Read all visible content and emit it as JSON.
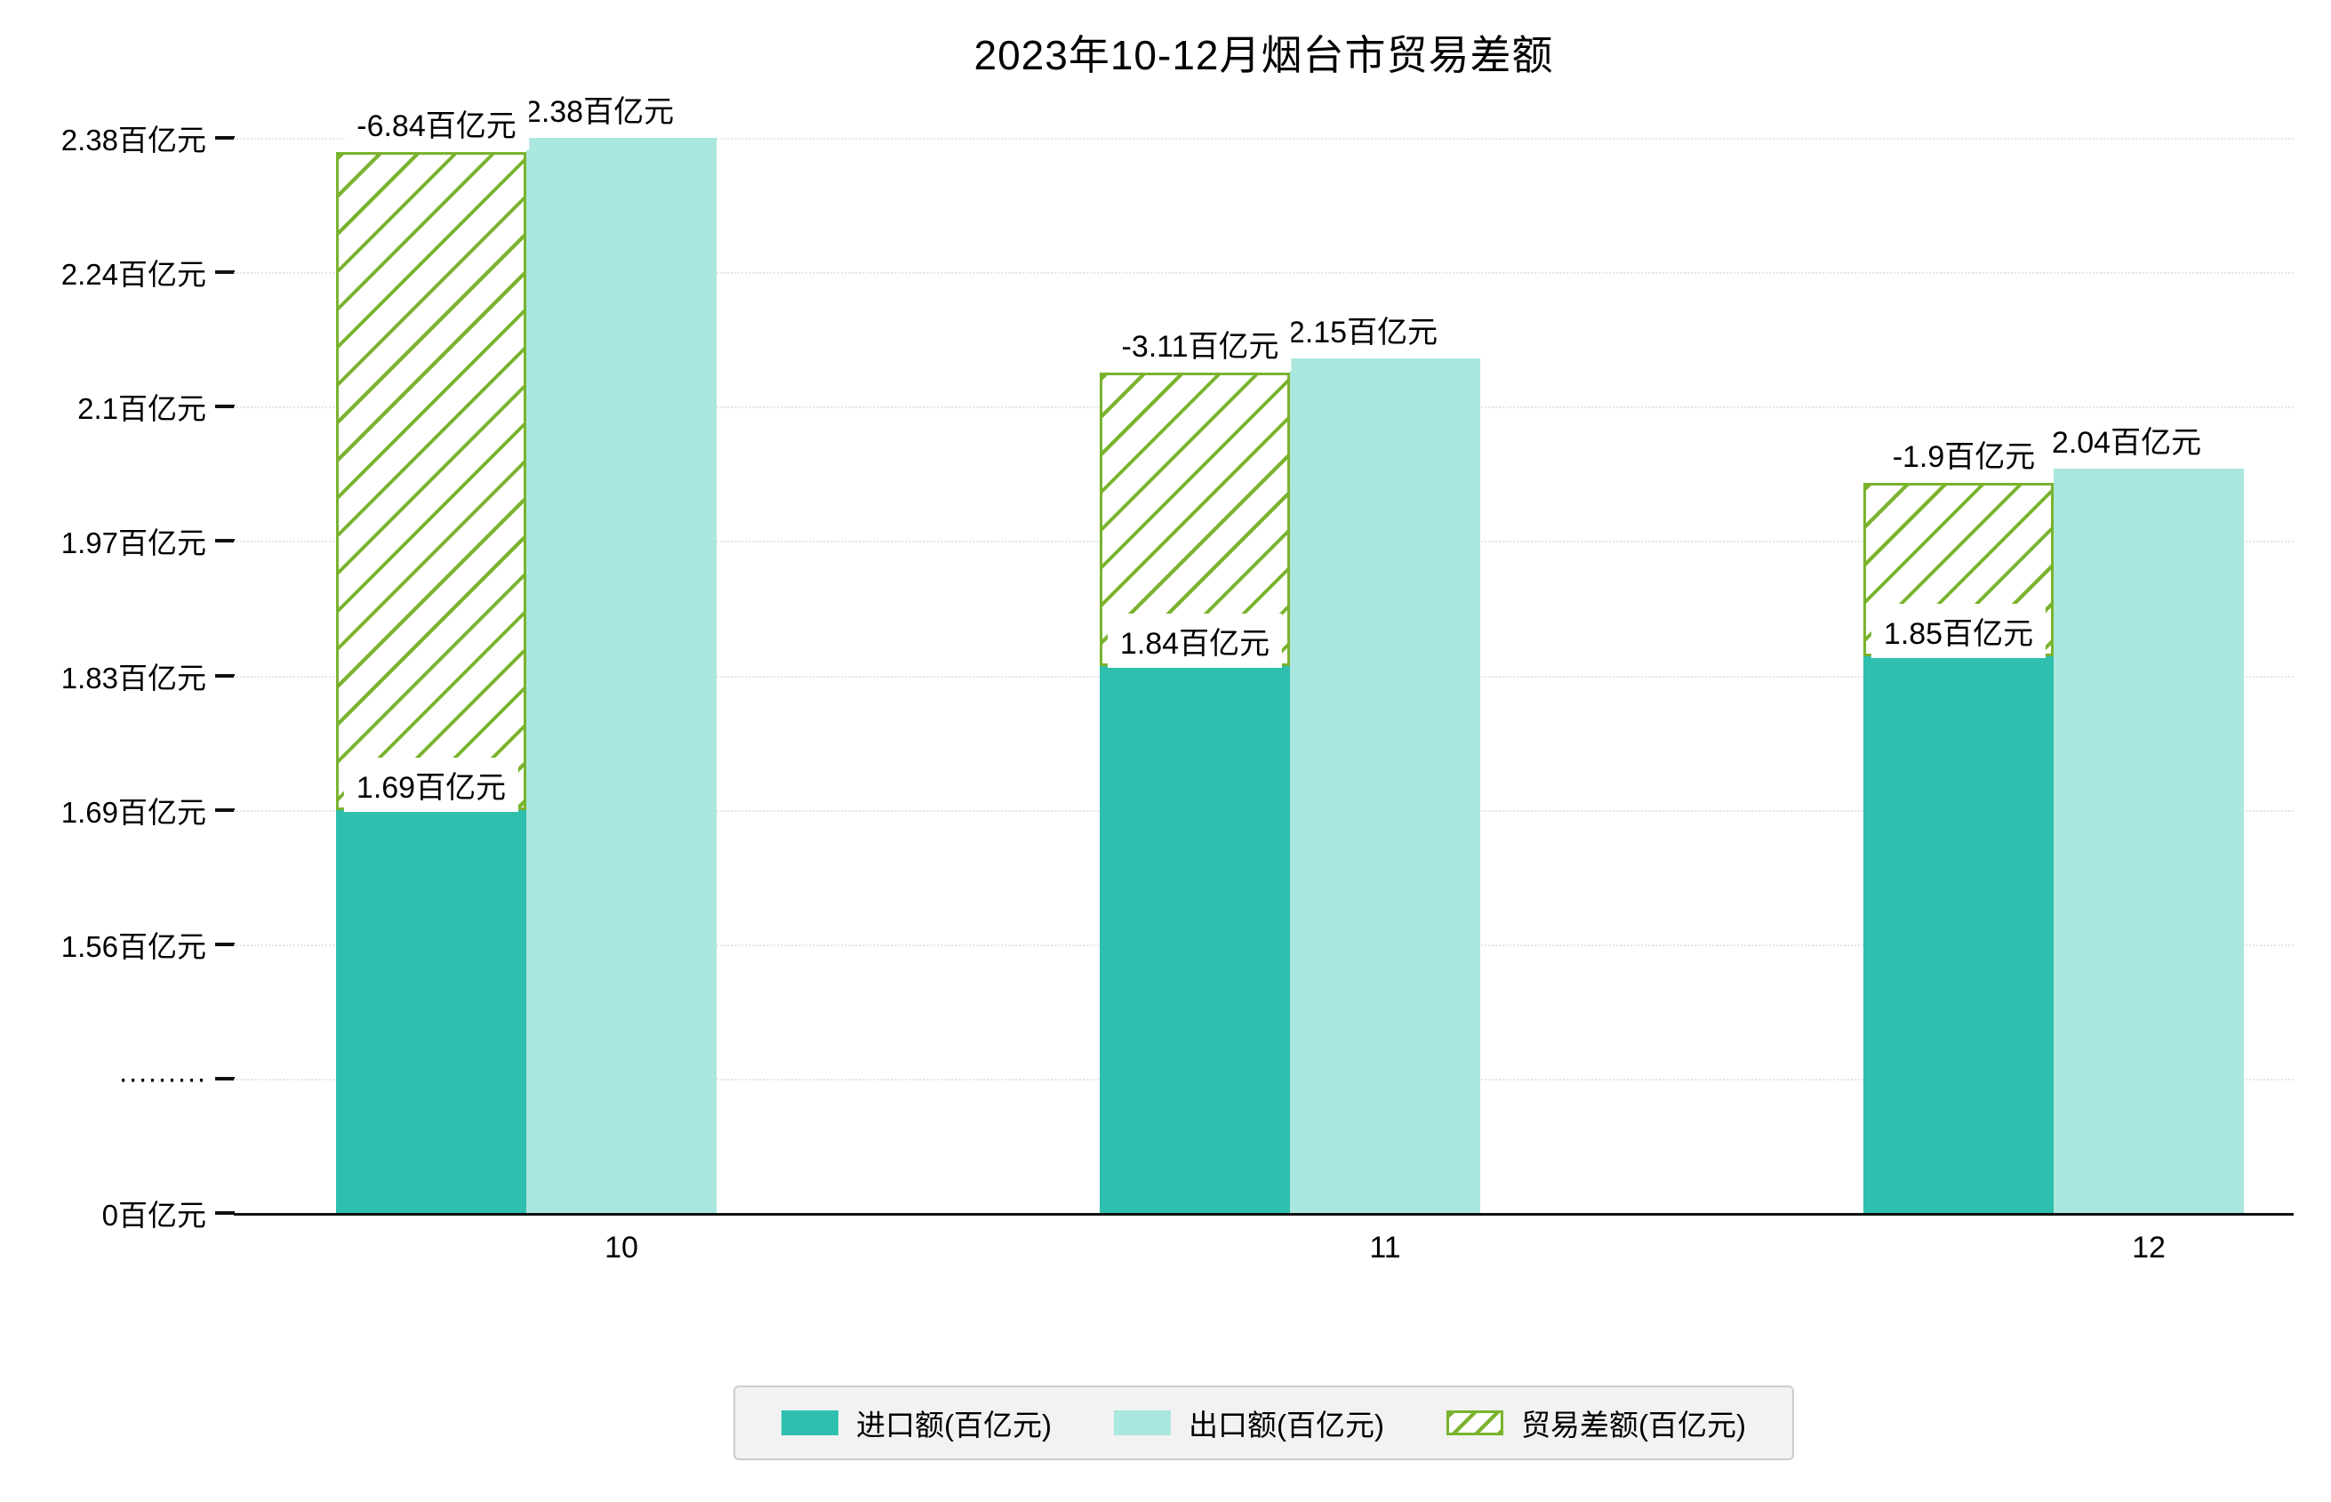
{
  "chart_data": {
    "type": "bar",
    "title": "2023年10-12月烟台市贸易差额",
    "categories": [
      "10",
      "11",
      "12"
    ],
    "unit": "百亿元",
    "series": [
      {
        "name": "进口额(百亿元)",
        "color": "#2fbfae",
        "values": [
          1.69,
          1.84,
          1.85
        ],
        "data_labels": [
          "1.69百亿元",
          "1.84百亿元",
          "1.85百亿元"
        ]
      },
      {
        "name": "出口额(百亿元)",
        "color": "#aae7de",
        "values": [
          2.38,
          2.15,
          2.04
        ],
        "data_labels": [
          "2.38百亿元",
          "2.15百亿元",
          "2.04百亿元"
        ]
      },
      {
        "name": "贸易差额(百亿元)",
        "style": "hatched",
        "color": "#7ab32e",
        "values": [
          -6.84,
          -3.11,
          -1.9
        ],
        "data_labels": [
          "-6.84百亿元",
          "-3.11百亿元",
          "-1.9百亿元"
        ]
      }
    ],
    "y_axis": {
      "axis_break": true,
      "ticks": [
        {
          "label": "2.38百亿元",
          "value": 2.38
        },
        {
          "label": "2.24百亿元",
          "value": 2.24
        },
        {
          "label": "2.1百亿元",
          "value": 2.1
        },
        {
          "label": "1.97百亿元",
          "value": 1.97
        },
        {
          "label": "1.83百亿元",
          "value": 1.83
        },
        {
          "label": "1.69百亿元",
          "value": 1.69
        },
        {
          "label": "1.56百亿元",
          "value": 1.56
        },
        {
          "label": "·········",
          "value": null
        },
        {
          "label": "0百亿元",
          "value": 0
        }
      ]
    },
    "legend": {
      "position": "bottom",
      "items": [
        "进口额(百亿元)",
        "出口额(百亿元)",
        "贸易差额(百亿元)"
      ]
    },
    "grid": true
  },
  "colors": {
    "import": "#2fbfae",
    "export": "#aae7de",
    "balance": "#7ab32e",
    "axis": "#111111",
    "gridline": "#e4e4e4",
    "legend_bg": "#f2f2f2",
    "legend_border": "#cccccc",
    "background": "#ffffff"
  }
}
